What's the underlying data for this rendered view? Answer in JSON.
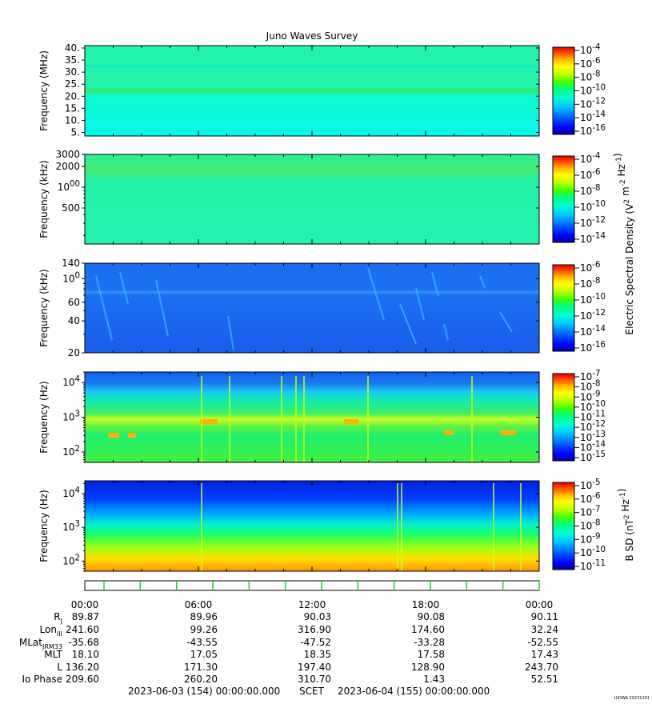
{
  "title": "Juno Waves Survey",
  "colors": {
    "scale": [
      "#0000a0",
      "#0000ff",
      "#0064ff",
      "#00c8ff",
      "#00ffd0",
      "#00ff7f",
      "#40ff00",
      "#c8ff00",
      "#ffff00",
      "#ffb400",
      "#ff5000",
      "#e60000"
    ]
  },
  "chart_data": [
    {
      "type": "heatmap",
      "ylabel": "Frequency (MHz)",
      "yscale": "linear",
      "ylim": [
        3.5,
        41
      ],
      "yticks": [
        {
          "v": 5,
          "l": "5."
        },
        {
          "v": 10,
          "l": "10."
        },
        {
          "v": 15,
          "l": "15."
        },
        {
          "v": 20,
          "l": "20."
        },
        {
          "v": 25,
          "l": "25."
        },
        {
          "v": 30,
          "l": "30."
        },
        {
          "v": 35,
          "l": "35."
        },
        {
          "v": 40,
          "l": "40."
        }
      ],
      "colorbar_ticks": [
        "10-4",
        "10-6",
        "10-8",
        "10-10",
        "10-12",
        "10-14",
        "10-16"
      ],
      "colorbar_label": ""
    },
    {
      "type": "heatmap",
      "ylabel": "Frequency (kHz)",
      "yscale": "log",
      "ylim": [
        150,
        3000
      ],
      "yticks": [
        {
          "v": 500,
          "l": "500"
        },
        {
          "v": 1000,
          "l": "1000"
        },
        {
          "v": 2000,
          "l": "2000"
        },
        {
          "v": 3000,
          "l": "3000"
        }
      ],
      "colorbar_ticks": [
        "10-4",
        "10-6",
        "10-8",
        "10-10",
        "10-12",
        "10-14"
      ],
      "colorbar_label": "Electric Spectral Density (V2 m-2 Hz-1)"
    },
    {
      "type": "heatmap",
      "ylabel": "Frequency (kHz)",
      "yscale": "log",
      "ylim": [
        20,
        140
      ],
      "yticks": [
        {
          "v": 20,
          "l": "20"
        },
        {
          "v": 40,
          "l": "40"
        },
        {
          "v": 60,
          "l": "60"
        },
        {
          "v": 100,
          "l": "100"
        },
        {
          "v": 140,
          "l": "140"
        }
      ],
      "colorbar_ticks": [
        "10-6",
        "10-8",
        "10-10",
        "10-12",
        "10-14",
        "10-16"
      ],
      "colorbar_label": ""
    },
    {
      "type": "heatmap",
      "ylabel": "Frequency (Hz)",
      "yscale": "log",
      "ylim": [
        50,
        20000
      ],
      "yticks": [
        {
          "v": 100,
          "l": "102"
        },
        {
          "v": 1000,
          "l": "103"
        },
        {
          "v": 10000,
          "l": "104"
        }
      ],
      "colorbar_ticks": [
        "10-7",
        "10-8",
        "10-9",
        "10-10",
        "10-11",
        "10-12",
        "10-13",
        "10-14",
        "10-15"
      ],
      "colorbar_label": ""
    },
    {
      "type": "heatmap",
      "ylabel": "Frequency (Hz)",
      "yscale": "log",
      "ylim": [
        50,
        24000
      ],
      "yticks": [
        {
          "v": 100,
          "l": "102"
        },
        {
          "v": 1000,
          "l": "103"
        },
        {
          "v": 10000,
          "l": "104"
        }
      ],
      "colorbar_ticks": [
        "10-5",
        "10-6",
        "10-7",
        "10-8",
        "10-9",
        "10-10",
        "10-11"
      ],
      "colorbar_label": "B SD (nT2 Hz-1)"
    }
  ],
  "ephemeris": {
    "times": [
      "00:00",
      "06:00",
      "12:00",
      "18:00",
      "00:00"
    ],
    "rows": [
      {
        "label": "RJ",
        "values": [
          "89.87",
          "89.96",
          "90.03",
          "90.08",
          "90.11"
        ]
      },
      {
        "label": "LonIII",
        "values": [
          "241.60",
          "99.26",
          "316.90",
          "174.60",
          "32.24"
        ]
      },
      {
        "label": "MLatJRM33",
        "values": [
          "-35.68",
          "-43.55",
          "-47.52",
          "-33.28",
          "-52.55"
        ]
      },
      {
        "label": "MLT",
        "values": [
          "18.10",
          "17.05",
          "18.35",
          "17.58",
          "17.43"
        ]
      },
      {
        "label": "L",
        "values": [
          "136.20",
          "171.30",
          "197.40",
          "128.90",
          "243.70"
        ]
      },
      {
        "label": "Io Phase",
        "values": [
          "209.60",
          "260.20",
          "310.70",
          "1.43",
          "52.51"
        ]
      }
    ],
    "date_start": "2023-06-03 (154) 00:00:00.000",
    "scet_label": "SCET",
    "date_end": "2023-06-04 (155) 00:00:00.000"
  },
  "footer_tag": "UIOWA 20231201"
}
